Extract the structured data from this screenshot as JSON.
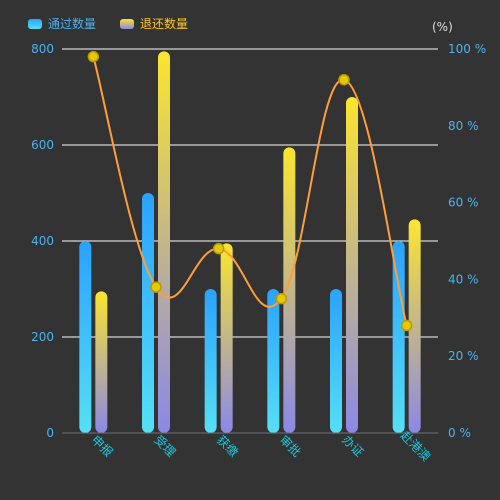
{
  "chart_data": {
    "type": "bar",
    "categories": [
      "申报",
      "受理",
      "获缴",
      "审批",
      "办证",
      "赴港澳"
    ],
    "series": [
      {
        "name": "通过数量",
        "kind": "bar",
        "axis": "left",
        "values": [
          400,
          500,
          300,
          300,
          300,
          400
        ],
        "gradient": [
          "#2aa2ff",
          "#55e0f5"
        ]
      },
      {
        "name": "退还数量",
        "kind": "bar",
        "axis": "left",
        "values": [
          295,
          795,
          395,
          595,
          700,
          445
        ],
        "gradient": [
          "#fbe52e",
          "#8b88e6"
        ]
      },
      {
        "name": "",
        "kind": "line",
        "axis": "right",
        "values": [
          98,
          38,
          48,
          35,
          92,
          28
        ],
        "color": "#ff9d3a",
        "marker_color": "#e6c800"
      }
    ],
    "yaxis_left": {
      "ylim": [
        0,
        800
      ],
      "ticks": [
        0,
        200,
        400,
        600,
        800
      ]
    },
    "yaxis_right": {
      "unit_label": "(%)",
      "ylim": [
        0,
        100
      ],
      "ticks": [
        "0 %",
        "20 %",
        "40 %",
        "60 %",
        "80 %",
        "100 %"
      ]
    },
    "grid": true,
    "legend": "top-left",
    "colors": {
      "background": "#333333",
      "axis_text": "#4ab3ef",
      "category_text": "#17c8e0",
      "grid": "#ffffff",
      "legend_text": "#ffc71a"
    }
  }
}
